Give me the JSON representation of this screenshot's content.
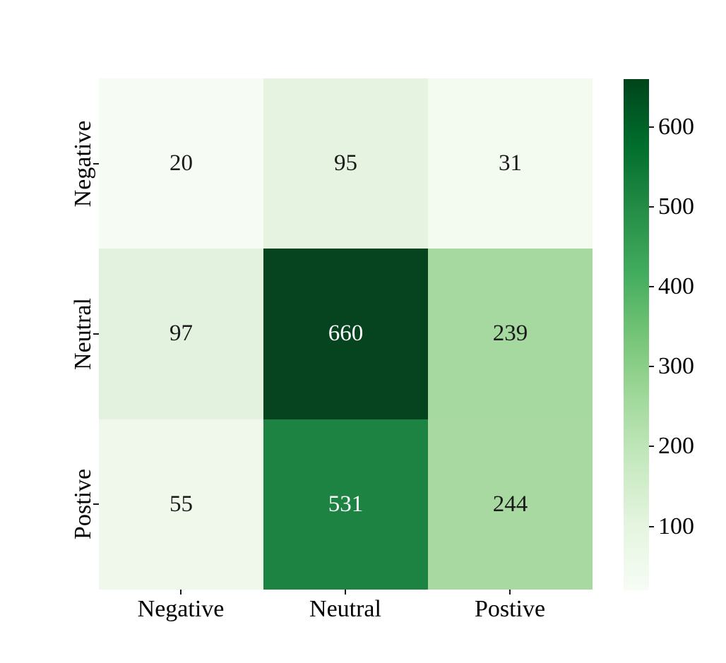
{
  "figure": {
    "background": "#ffffff",
    "text_color": "#000000"
  },
  "chart_data": {
    "type": "heatmap",
    "title": "",
    "xlabel": "",
    "ylabel": "",
    "row_labels": [
      "Negative",
      "Neutral",
      "Postive"
    ],
    "col_labels": [
      "Negative",
      "Neutral",
      "Postive"
    ],
    "values": [
      [
        20,
        95,
        31
      ],
      [
        97,
        660,
        239
      ],
      [
        55,
        531,
        244
      ]
    ],
    "vmin": 20,
    "vmax": 660,
    "colormap": "Greens",
    "annotated": true,
    "grid": false,
    "cell_colors": [
      [
        "#f6fbf4",
        "#e6f3e1",
        "#f3faf0"
      ],
      [
        "#e3f2de",
        "#05441e",
        "#a5d99f"
      ],
      [
        "#eff8eb",
        "#1d8342",
        "#a7d9a1"
      ]
    ],
    "cell_text_colors": [
      [
        "#1a1a1a",
        "#1a1a1a",
        "#1a1a1a"
      ],
      [
        "#1a1a1a",
        "#ffffff",
        "#1a1a1a"
      ],
      [
        "#1a1a1a",
        "#ffffff",
        "#1a1a1a"
      ]
    ],
    "colorbar": {
      "position": "right",
      "ticks": [
        600,
        500,
        400,
        300,
        200,
        100
      ],
      "gradient": [
        {
          "pos": 0,
          "color": "#00441b"
        },
        {
          "pos": 12.5,
          "color": "#006d2c"
        },
        {
          "pos": 25,
          "color": "#238b45"
        },
        {
          "pos": 37.5,
          "color": "#41ab5d"
        },
        {
          "pos": 50,
          "color": "#74c476"
        },
        {
          "pos": 62.5,
          "color": "#a1d99b"
        },
        {
          "pos": 75,
          "color": "#c7e9c0"
        },
        {
          "pos": 87.5,
          "color": "#e5f5e0"
        },
        {
          "pos": 100,
          "color": "#f7fcf5"
        }
      ]
    }
  }
}
